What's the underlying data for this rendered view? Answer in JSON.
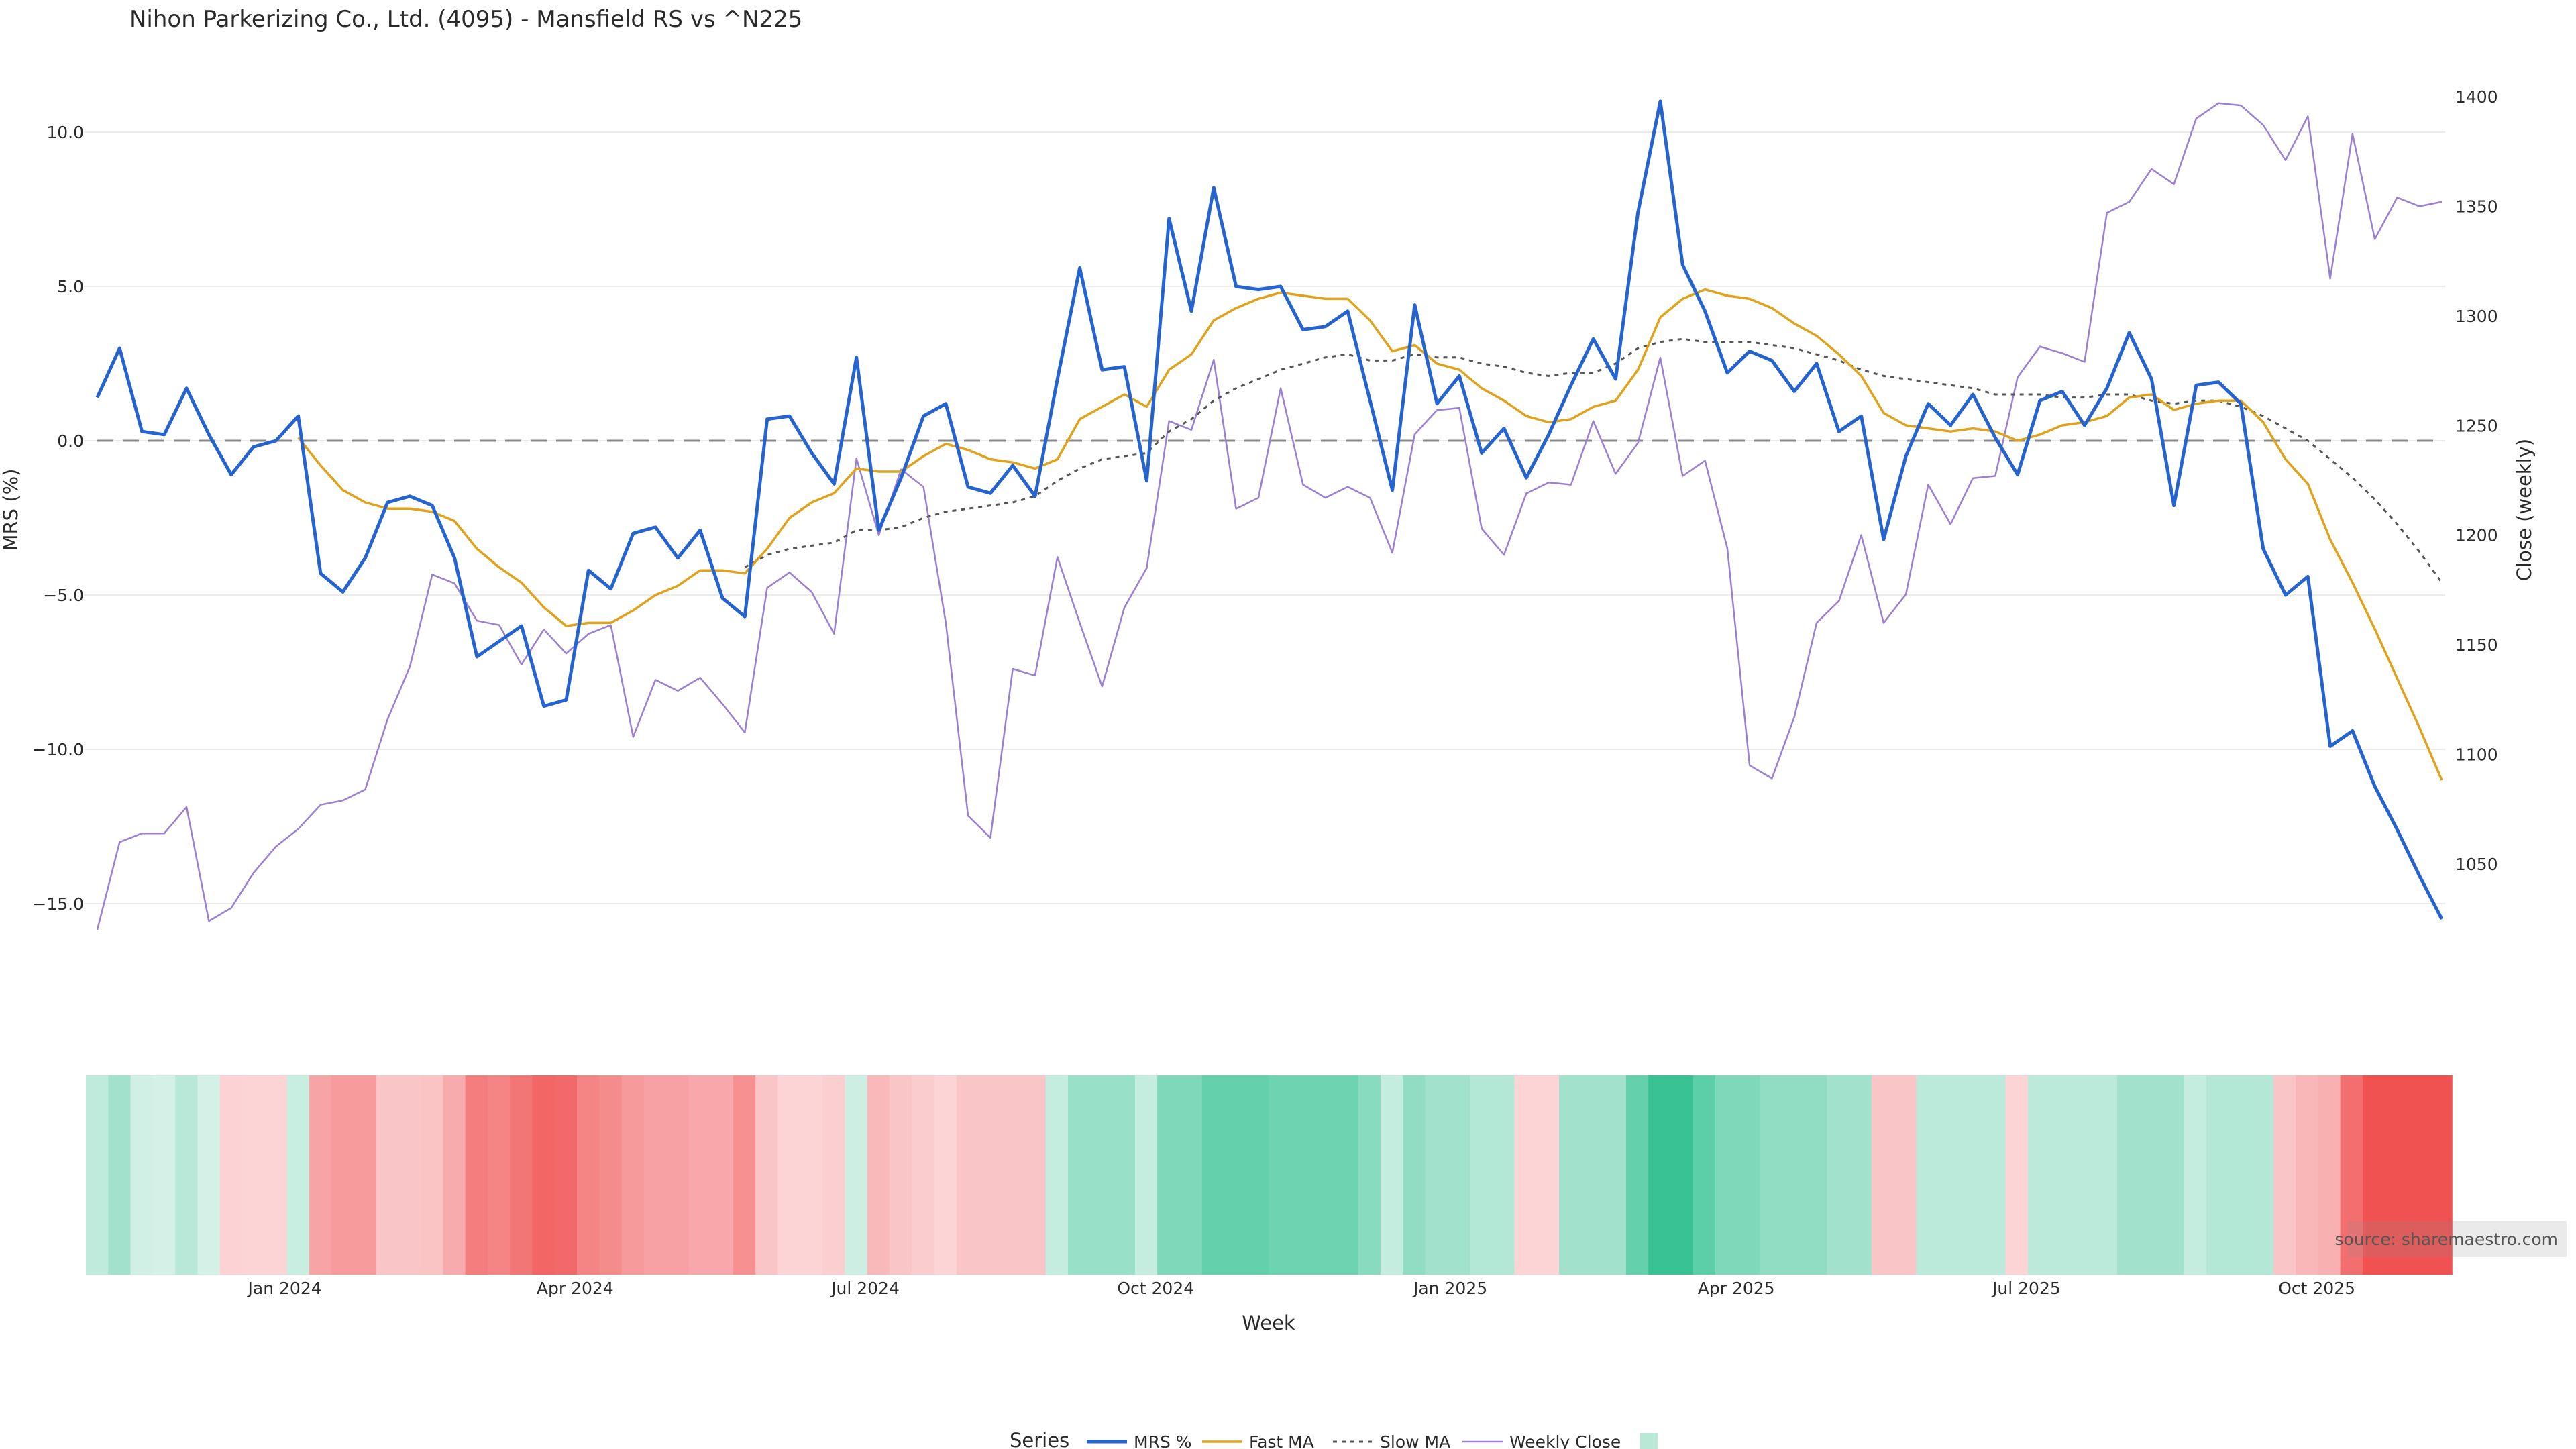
{
  "chart_data": {
    "type": "line",
    "title": "Nihon Parkerizing Co., Ltd. (4095) - Mansfield RS vs ^N225",
    "xlabel": "Week",
    "ylabel": "MRS (%)",
    "y2label": "Close (weekly)",
    "ylim": [
      -17.5,
      12.2
    ],
    "y2lim": [
      1014,
      1405
    ],
    "yticks": [
      "10.0",
      "5.0",
      "0.0",
      "−5.0",
      "−10.0",
      "−15.0"
    ],
    "yticks_values": [
      10,
      5,
      0,
      -5,
      -10,
      -15
    ],
    "y2ticks": [
      "1400",
      "1350",
      "1300",
      "1250",
      "1200",
      "1150",
      "1100",
      "1050"
    ],
    "y2ticks_values": [
      1400,
      1350,
      1300,
      1250,
      1200,
      1150,
      1100,
      1050
    ],
    "xticks": [
      "Jan 2024",
      "Apr 2024",
      "Jul 2024",
      "Oct 2024",
      "Jan 2025",
      "Apr 2025",
      "Jul 2025",
      "Oct 2025"
    ],
    "xticks_week_index": [
      8.4,
      21.4,
      34.4,
      47.4,
      60.6,
      73.4,
      86.4,
      99.4
    ],
    "zero_line": 0,
    "legend_title": "Series",
    "source": "source: sharemaestro.com",
    "series": [
      {
        "name": "MRS %",
        "color": "#2563d0",
        "values": [
          1.4,
          3.0,
          0.3,
          0.2,
          1.7,
          0.2,
          -1.1,
          -0.2,
          0.0,
          0.8,
          -4.3,
          -4.9,
          -3.8,
          -2.0,
          -1.8,
          -2.1,
          -3.8,
          -7.0,
          -6.5,
          -6.0,
          -8.6,
          -8.4,
          -4.2,
          -4.8,
          -3.0,
          -2.8,
          -3.8,
          -2.9,
          -5.1,
          -5.7,
          0.7,
          0.8,
          -0.4,
          -1.4,
          2.7,
          -2.9,
          -1.2,
          0.8,
          1.2,
          -1.5,
          -1.7,
          -0.8,
          -1.8,
          2.0,
          5.6,
          2.3,
          2.4,
          -1.3,
          7.2,
          4.2,
          8.2,
          5.0,
          4.9,
          5.0,
          3.6,
          3.7,
          4.2,
          1.3,
          -1.6,
          4.4,
          1.2,
          2.1,
          -0.4,
          0.4,
          -1.2,
          0.2,
          1.8,
          3.3,
          2.0,
          7.4,
          11.0,
          5.7,
          4.2,
          2.2,
          2.9,
          2.6,
          1.6,
          2.5,
          0.3,
          0.8,
          -3.2,
          -0.5,
          1.2,
          0.5,
          1.5,
          0.1,
          -1.1,
          1.3,
          1.6,
          0.5,
          1.7,
          3.5,
          2.0,
          -2.1,
          1.8,
          1.9,
          1.2,
          -3.5,
          -5.0,
          -4.4,
          -9.9,
          -9.4,
          -11.2,
          -12.6,
          -14.1,
          -15.5
        ]
      },
      {
        "name": "Fast MA",
        "color": "#e0a21b",
        "values": [
          null,
          null,
          null,
          null,
          null,
          null,
          null,
          null,
          null,
          0.1,
          -0.8,
          -1.6,
          -2.0,
          -2.2,
          -2.2,
          -2.3,
          -2.6,
          -3.5,
          -4.1,
          -4.6,
          -5.4,
          -6.0,
          -5.9,
          -5.9,
          -5.5,
          -5.0,
          -4.7,
          -4.2,
          -4.2,
          -4.3,
          -3.5,
          -2.5,
          -2.0,
          -1.7,
          -0.9,
          -1.0,
          -1.0,
          -0.5,
          -0.1,
          -0.3,
          -0.6,
          -0.7,
          -0.9,
          -0.6,
          0.7,
          1.1,
          1.5,
          1.1,
          2.3,
          2.8,
          3.9,
          4.3,
          4.6,
          4.8,
          4.7,
          4.6,
          4.6,
          3.9,
          2.9,
          3.1,
          2.5,
          2.3,
          1.7,
          1.3,
          0.8,
          0.6,
          0.7,
          1.1,
          1.3,
          2.3,
          4.0,
          4.6,
          4.9,
          4.7,
          4.6,
          4.3,
          3.8,
          3.4,
          2.8,
          2.1,
          0.9,
          0.5,
          0.4,
          0.3,
          0.4,
          0.3,
          0.0,
          0.2,
          0.5,
          0.6,
          0.8,
          1.4,
          1.5,
          1.0,
          1.2,
          1.3,
          1.3,
          0.6,
          -0.6,
          -1.4,
          -3.2,
          -4.6,
          -6.1,
          -7.7,
          -9.3,
          -11.0
        ]
      },
      {
        "name": "Slow MA",
        "color": "#555555",
        "dash": true,
        "values": [
          null,
          null,
          null,
          null,
          null,
          null,
          null,
          null,
          null,
          null,
          null,
          null,
          null,
          null,
          null,
          null,
          null,
          null,
          null,
          null,
          null,
          null,
          null,
          null,
          null,
          null,
          null,
          null,
          null,
          -4.1,
          -3.7,
          -3.5,
          -3.4,
          -3.3,
          -2.9,
          -2.9,
          -2.8,
          -2.5,
          -2.3,
          -2.2,
          -2.1,
          -2.0,
          -1.8,
          -1.3,
          -0.9,
          -0.6,
          -0.5,
          -0.4,
          0.3,
          0.7,
          1.3,
          1.7,
          2.0,
          2.3,
          2.5,
          2.7,
          2.8,
          2.6,
          2.6,
          2.8,
          2.7,
          2.7,
          2.5,
          2.4,
          2.2,
          2.1,
          2.2,
          2.2,
          2.5,
          3.0,
          3.2,
          3.3,
          3.2,
          3.2,
          3.2,
          3.1,
          3.0,
          2.8,
          2.6,
          2.3,
          2.1,
          2.0,
          1.9,
          1.8,
          1.7,
          1.5,
          1.5,
          1.5,
          1.4,
          1.4,
          1.5,
          1.5,
          1.3,
          1.2,
          1.3,
          1.3,
          1.1,
          0.8,
          0.4,
          0.0,
          -0.6,
          -1.2,
          -1.9,
          -2.7,
          -3.6,
          -4.6
        ]
      },
      {
        "name": "Weekly Close",
        "color": "#9b7fd4",
        "axis": "y2",
        "values": [
          1020,
          1060,
          1064,
          1064,
          1076,
          1024,
          1030,
          1046,
          1058,
          1066,
          1077,
          1079,
          1084,
          1116,
          1140,
          1182,
          1178,
          1161,
          1159,
          1141,
          1157,
          1146,
          1155,
          1159,
          1108,
          1134,
          1129,
          1135,
          1123,
          1110,
          1176,
          1183,
          1174,
          1155,
          1235,
          1200,
          1230,
          1222,
          1160,
          1072,
          1062,
          1139,
          1136,
          1190,
          1160,
          1131,
          1167,
          1185,
          1252,
          1248,
          1280,
          1212,
          1217,
          1267,
          1223,
          1217,
          1222,
          1217,
          1192,
          1246,
          1257,
          1258,
          1203,
          1191,
          1219,
          1224,
          1223,
          1252,
          1228,
          1242,
          1281,
          1227,
          1234,
          1194,
          1095,
          1089,
          1117,
          1160,
          1170,
          1200,
          1160,
          1173,
          1223,
          1205,
          1226,
          1227,
          1272,
          1286,
          1283,
          1279,
          1347,
          1352,
          1367,
          1360,
          1390,
          1397,
          1396,
          1387,
          1371,
          1391,
          1317,
          1383,
          1335,
          1354,
          1350,
          1352
        ]
      },
      {
        "name": "",
        "color": "#b8e8d6",
        "type": "heatmap-band",
        "values": [
          1.4,
          3.0,
          0.3,
          0.2,
          1.7,
          0.2,
          -1.1,
          -1.0,
          -1.0,
          0.8,
          -4.3,
          -4.9,
          -4.9,
          -2.0,
          -2.0,
          -2.1,
          -3.8,
          -7.0,
          -6.5,
          -7.5,
          -8.6,
          -8.4,
          -6.5,
          -6.0,
          -5.0,
          -4.5,
          -4.5,
          -4.0,
          -4.0,
          -5.7,
          -2.0,
          -1.0,
          -1.0,
          -1.4,
          0.5,
          -2.9,
          -2.0,
          -1.5,
          -1.0,
          -2.0,
          -2.0,
          -2.0,
          -2.0,
          1.0,
          3.5,
          3.5,
          3.5,
          1.0,
          5.0,
          5.0,
          6.5,
          6.5,
          6.5,
          6.0,
          6.0,
          6.0,
          6.0,
          4.5,
          1.0,
          4.0,
          3.0,
          3.0,
          2.0,
          2.0,
          -1.0,
          -1.0,
          3.0,
          3.0,
          3.0,
          6.5,
          9.0,
          9.0,
          7.0,
          5.0,
          5.0,
          4.0,
          4.0,
          4.0,
          3.0,
          3.0,
          -2.0,
          -2.0,
          1.5,
          1.5,
          1.5,
          1.5,
          -1.0,
          1.5,
          1.5,
          1.5,
          1.5,
          3.0,
          3.0,
          3.0,
          1.0,
          2.0,
          2.0,
          2.0,
          -2.0,
          -3.0,
          -3.5,
          -8.0,
          -10.0,
          -10.0,
          -10.0,
          -10.0
        ]
      }
    ]
  }
}
